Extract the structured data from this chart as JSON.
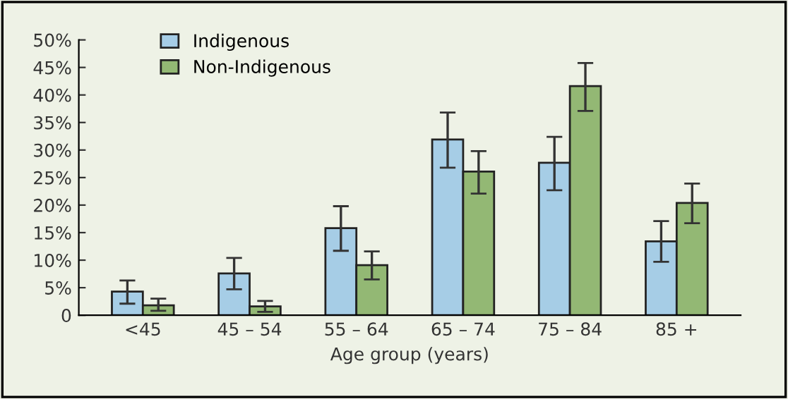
{
  "chart_data": {
    "type": "bar",
    "xlabel": "Age group (years)",
    "categories": [
      "<45",
      "45 – 54",
      "55 – 64",
      "65 – 74",
      "75 – 84",
      "85 +"
    ],
    "series": [
      {
        "name": "Indigenous",
        "color": "#a6cde6",
        "values": [
          4.3,
          7.6,
          15.8,
          31.9,
          27.7,
          13.4
        ],
        "errors": [
          [
            2.1,
            6.3
          ],
          [
            4.7,
            10.4
          ],
          [
            11.7,
            19.8
          ],
          [
            26.8,
            36.8
          ],
          [
            22.7,
            32.4
          ],
          [
            9.7,
            17.1
          ]
        ]
      },
      {
        "name": "Non-Indigenous",
        "color": "#93b874",
        "values": [
          1.8,
          1.6,
          9.1,
          26.1,
          41.6,
          20.4
        ],
        "errors": [
          [
            0.8,
            3.0
          ],
          [
            0.6,
            2.6
          ],
          [
            6.5,
            11.6
          ],
          [
            22.1,
            29.8
          ],
          [
            37.1,
            45.8
          ],
          [
            16.7,
            23.9
          ]
        ]
      }
    ],
    "ylim": [
      0,
      50
    ],
    "yticks": [
      0,
      {
        "value": 5,
        "label": "5%"
      },
      {
        "value": 10,
        "label": "10%"
      },
      {
        "value": 15,
        "label": "15%"
      },
      {
        "value": 20,
        "label": "20%"
      },
      {
        "value": 25,
        "label": "25%"
      },
      {
        "value": 30,
        "label": "30%"
      },
      {
        "value": 35,
        "label": "35%"
      },
      {
        "value": 40,
        "label": "40%"
      },
      {
        "value": 45,
        "label": "45%"
      },
      {
        "value": 50,
        "label": "50%"
      }
    ],
    "grid": false,
    "legend": "top left"
  }
}
